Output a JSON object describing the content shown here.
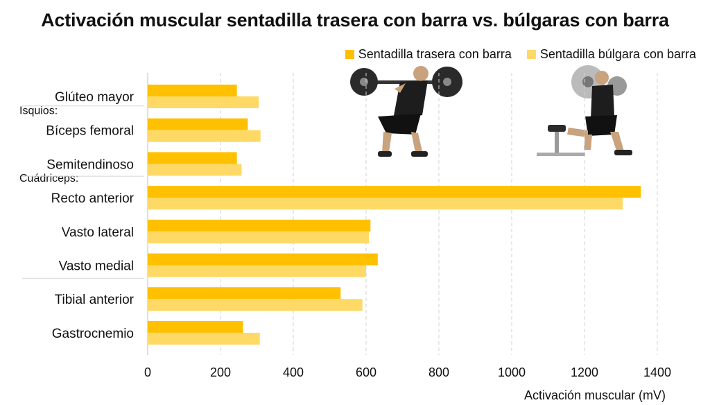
{
  "chart_data": {
    "type": "bar",
    "orientation": "horizontal",
    "title": "Activación muscular sentadilla trasera con barra vs. búlgaras con barra",
    "xlabel": "Activación muscular (mV)",
    "xlim": [
      0,
      1400
    ],
    "xticks": [
      0,
      200,
      400,
      600,
      800,
      1000,
      1200,
      1400
    ],
    "grid": "vertical dashed",
    "legend_position": "top-right",
    "group_labels": [
      {
        "label": "Isquios:",
        "before_index": 1
      },
      {
        "label": "Cuádriceps:",
        "before_index": 3
      }
    ],
    "categories": [
      "Glúteo mayor",
      "Bíceps femoral",
      "Semitendinoso",
      "Recto anterior",
      "Vasto lateral",
      "Vasto medial",
      "Tibial anterior",
      "Gastrocnemio"
    ],
    "series": [
      {
        "name": "Sentadilla trasera con barra",
        "color": "#FFC000",
        "values": [
          245,
          275,
          245,
          1355,
          612,
          632,
          530,
          262
        ]
      },
      {
        "name": "Sentadilla búlgara con barra",
        "color": "#FFD966",
        "values": [
          305,
          310,
          258,
          1305,
          608,
          600,
          590,
          308
        ]
      }
    ]
  },
  "images": {
    "left": "back-squat-athlete",
    "right": "bulgarian-split-squat-athlete"
  }
}
